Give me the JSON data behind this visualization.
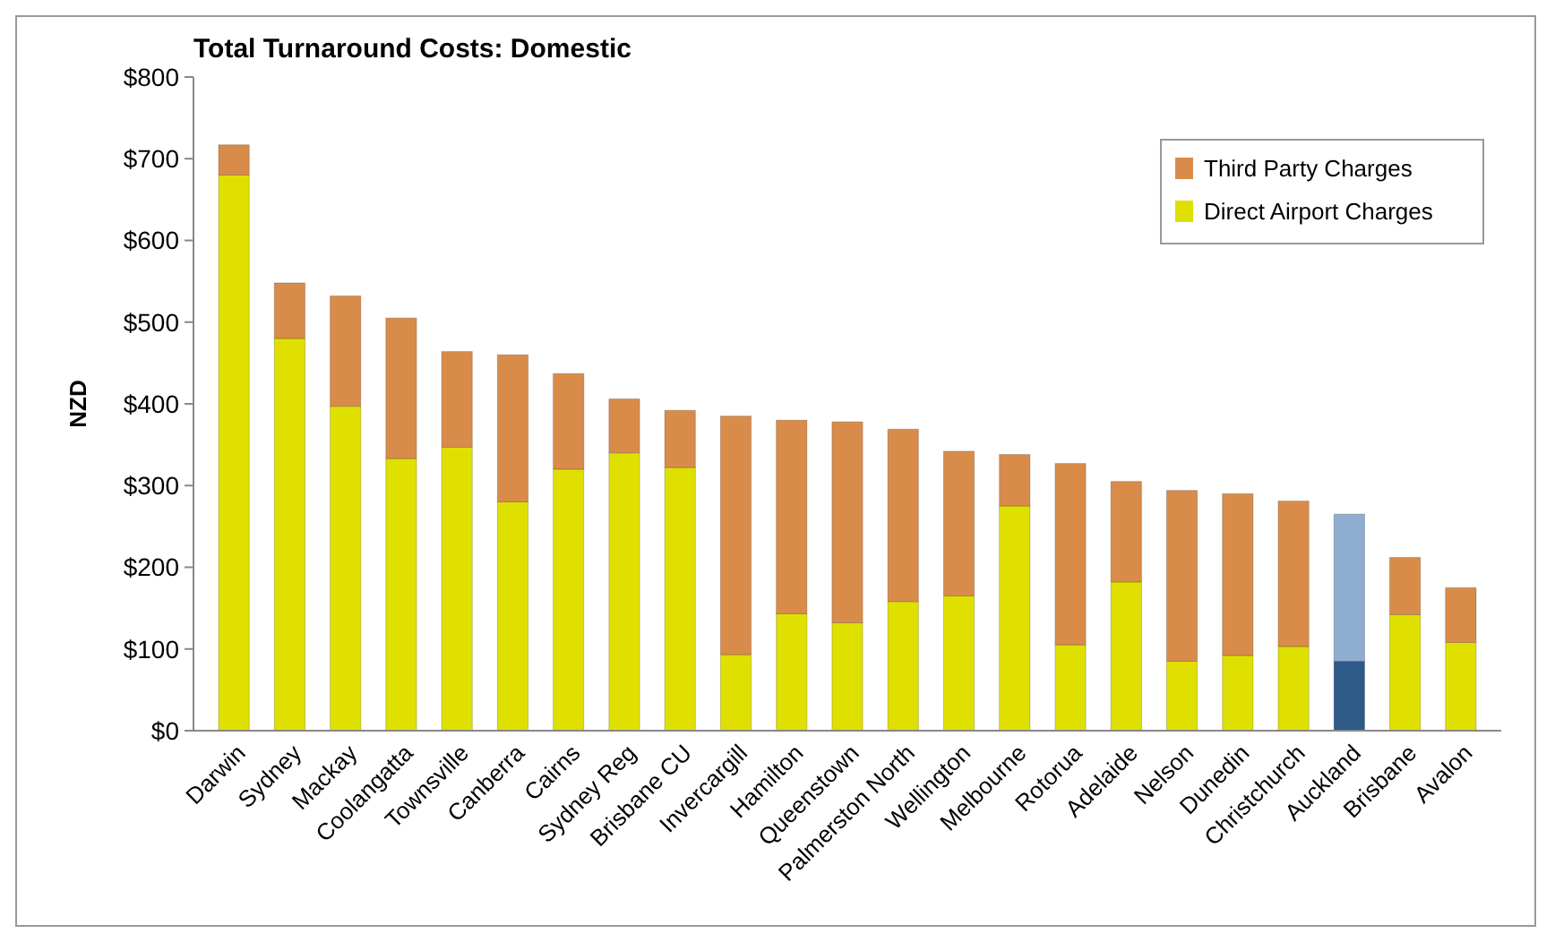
{
  "chart_data": {
    "type": "bar",
    "title": "Total Turnaround Costs: Domestic",
    "ylabel": "NZD",
    "stacked": true,
    "legend": "top right",
    "grid": false,
    "categories": [
      "Darwin",
      "Sydney",
      "Mackay",
      "Coolangatta",
      "Townsville",
      "Canberra",
      "Cairns",
      "Sydney Reg",
      "Brisbane CU",
      "Invercargill",
      "Hamilton",
      "Queenstown",
      "Palmerston North",
      "Wellington",
      "Melbourne",
      "Rotorua",
      "Adelaide",
      "Nelson",
      "Dunedin",
      "Christchurch",
      "Auckland",
      "Brisbane",
      "Avalon"
    ],
    "ylim": [
      0,
      800
    ],
    "yticks": [
      {
        "value": 0,
        "label": "$0"
      },
      {
        "value": 100,
        "label": "$100"
      },
      {
        "value": 200,
        "label": "$200"
      },
      {
        "value": 300,
        "label": "$300"
      },
      {
        "value": 400,
        "label": "$400"
      },
      {
        "value": 500,
        "label": "$500"
      },
      {
        "value": 600,
        "label": "$600"
      },
      {
        "value": 700,
        "label": "$700"
      },
      {
        "value": 800,
        "label": "$800"
      }
    ],
    "series": [
      {
        "name": "Direct Airport Charges",
        "color": "#e0e000",
        "colors": [
          "#e0e000",
          "#e0e000",
          "#e0e000",
          "#e0e000",
          "#e0e000",
          "#e0e000",
          "#e0e000",
          "#e0e000",
          "#e0e000",
          "#e0e000",
          "#e0e000",
          "#e0e000",
          "#e0e000",
          "#e0e000",
          "#e0e000",
          "#e0e000",
          "#e0e000",
          "#e0e000",
          "#e0e000",
          "#e0e000",
          "#2e5a88",
          "#e0e000",
          "#e0e000"
        ],
        "values": [
          680,
          480,
          397,
          333,
          347,
          280,
          320,
          340,
          322,
          93,
          143,
          132,
          158,
          165,
          275,
          105,
          182,
          85,
          92,
          103,
          85,
          142,
          108
        ]
      },
      {
        "name": "Third Party Charges",
        "color": "#d98c4a",
        "colors": [
          "#d98c4a",
          "#d98c4a",
          "#d98c4a",
          "#d98c4a",
          "#d98c4a",
          "#d98c4a",
          "#d98c4a",
          "#d98c4a",
          "#d98c4a",
          "#d98c4a",
          "#d98c4a",
          "#d98c4a",
          "#d98c4a",
          "#d98c4a",
          "#d98c4a",
          "#d98c4a",
          "#d98c4a",
          "#d98c4a",
          "#d98c4a",
          "#d98c4a",
          "#8fadd0",
          "#d98c4a",
          "#d98c4a"
        ],
        "values": [
          37,
          68,
          135,
          172,
          117,
          180,
          117,
          66,
          70,
          292,
          237,
          246,
          211,
          177,
          63,
          222,
          123,
          209,
          198,
          178,
          180,
          70,
          67
        ]
      }
    ]
  }
}
